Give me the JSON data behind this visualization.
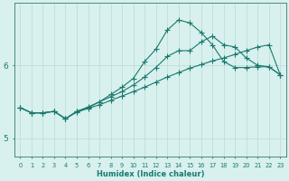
{
  "xlabel": "Humidex (Indice chaleur)",
  "bg_color": "#d8f0ee",
  "line_color": "#1a7a6e",
  "grid_color": "#c0ddd9",
  "axis_color": "#4a8a80",
  "xlim": [
    -0.5,
    23.5
  ],
  "ylim": [
    4.75,
    6.85
  ],
  "yticks": [
    5,
    6
  ],
  "xticks": [
    0,
    1,
    2,
    3,
    4,
    5,
    6,
    7,
    8,
    9,
    10,
    11,
    12,
    13,
    14,
    15,
    16,
    17,
    18,
    19,
    20,
    21,
    22,
    23
  ],
  "line1_x": [
    0,
    1,
    2,
    3,
    4,
    5,
    6,
    7,
    8,
    9,
    10,
    11,
    12,
    13,
    14,
    15,
    16,
    17,
    18,
    19,
    20,
    21,
    22,
    23
  ],
  "line1_y": [
    5.42,
    5.35,
    5.35,
    5.37,
    5.27,
    5.36,
    5.41,
    5.46,
    5.52,
    5.58,
    5.64,
    5.7,
    5.77,
    5.84,
    5.9,
    5.96,
    6.01,
    6.06,
    6.1,
    6.15,
    6.2,
    6.25,
    6.28,
    5.87
  ],
  "line2_x": [
    0,
    1,
    2,
    3,
    4,
    5,
    6,
    7,
    8,
    9,
    10,
    11,
    12,
    13,
    14,
    15,
    16,
    17,
    18,
    19,
    20,
    21,
    22,
    23
  ],
  "line2_y": [
    5.42,
    5.35,
    5.35,
    5.37,
    5.27,
    5.37,
    5.43,
    5.5,
    5.57,
    5.64,
    5.73,
    5.84,
    5.97,
    6.12,
    6.2,
    6.2,
    6.32,
    6.4,
    6.28,
    6.25,
    6.1,
    6.0,
    5.98,
    5.87
  ],
  "line3_x": [
    0,
    1,
    2,
    3,
    4,
    5,
    6,
    7,
    8,
    9,
    10,
    11,
    12,
    13,
    14,
    15,
    16,
    17,
    18,
    19,
    20,
    21,
    22,
    23
  ],
  "line3_y": [
    5.42,
    5.35,
    5.35,
    5.37,
    5.27,
    5.37,
    5.42,
    5.5,
    5.6,
    5.7,
    5.82,
    6.05,
    6.22,
    6.48,
    6.62,
    6.58,
    6.45,
    6.28,
    6.05,
    5.97,
    5.97,
    5.98,
    5.98,
    5.87
  ]
}
